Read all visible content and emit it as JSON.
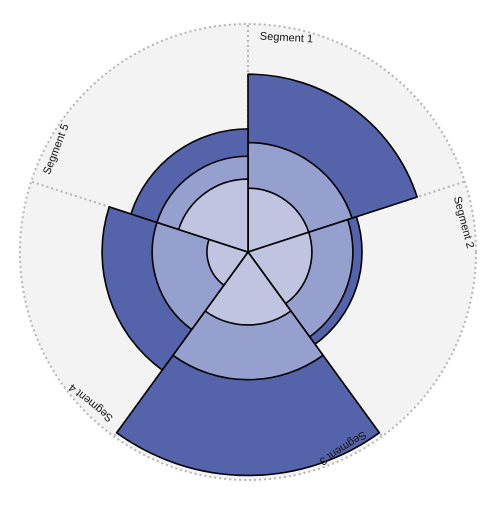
{
  "chart_data": {
    "type": "nightingale-rose",
    "max_value": 5,
    "layer_colors": [
      "#c0c4e0",
      "#95a0cf",
      "#5563aa"
    ],
    "background_color": "#f3f3f3",
    "segments": [
      {
        "name": "Segment 1",
        "values": [
          1.4,
          2.4,
          3.9
        ]
      },
      {
        "name": "Segment 2",
        "values": [
          1.4,
          2.3,
          2.5
        ]
      },
      {
        "name": "Segment 3",
        "values": [
          1.6,
          2.8,
          4.9
        ]
      },
      {
        "name": "Segment 4",
        "values": [
          0.9,
          2.1,
          3.2
        ]
      },
      {
        "name": "Segment 5",
        "values": [
          1.6,
          2.1,
          2.7
        ]
      }
    ]
  }
}
